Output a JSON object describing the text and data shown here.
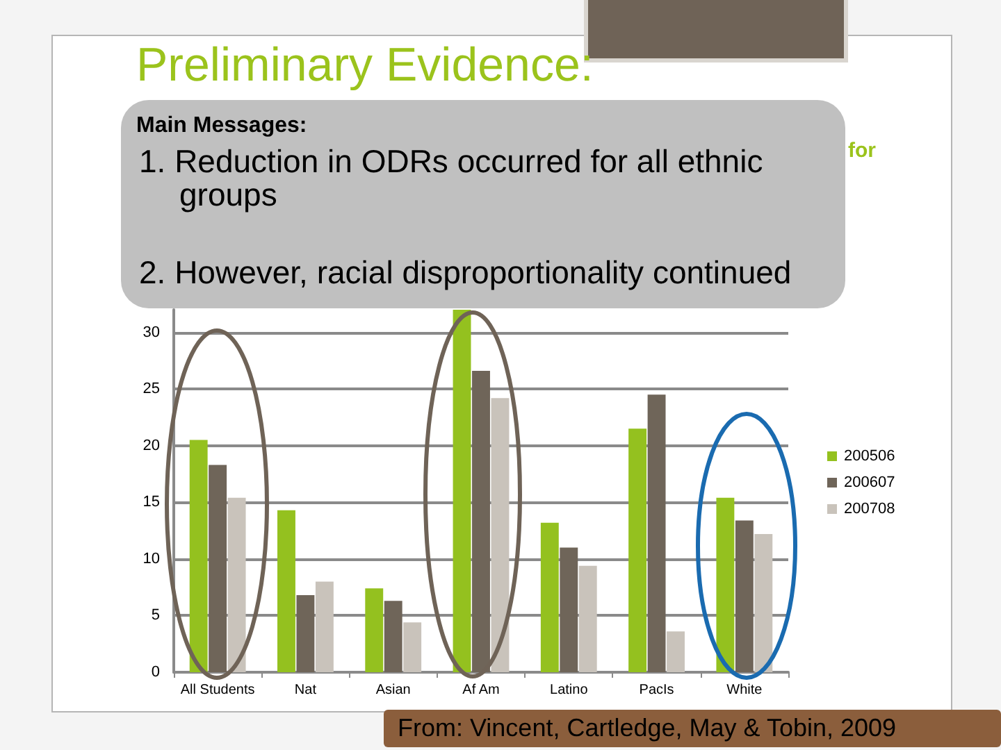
{
  "chart_data": {
    "type": "bar",
    "title": "Preliminary Evidence:",
    "subtitle": "for",
    "categories": [
      "All Students",
      "Nat",
      "Asian",
      "Af Am",
      "Latino",
      "PacIs",
      "White"
    ],
    "series": [
      {
        "name": "200506",
        "color": "#94c11f",
        "values": [
          20.5,
          14.3,
          7.4,
          32,
          13.2,
          21.5,
          15.4
        ]
      },
      {
        "name": "200607",
        "color": "#6f6559",
        "values": [
          18.3,
          6.8,
          6.3,
          26.6,
          11.0,
          24.5,
          13.4
        ]
      },
      {
        "name": "200708",
        "color": "#c9c3bb",
        "values": [
          15.4,
          8.0,
          4.4,
          24.2,
          9.4,
          3.6,
          12.2
        ]
      }
    ],
    "ylim": [
      0,
      32
    ],
    "yticks": [
      0,
      5,
      10,
      15,
      20,
      25,
      30
    ],
    "grid": "y",
    "legend": "right",
    "annotations": [
      "Main Messages:",
      "1. Reduction in ODRs occurred for all ethnic groups",
      "2. However, racial disproportionality continued",
      "From: Vincent, Cartledge, May & Tobin, 2009"
    ]
  }
}
